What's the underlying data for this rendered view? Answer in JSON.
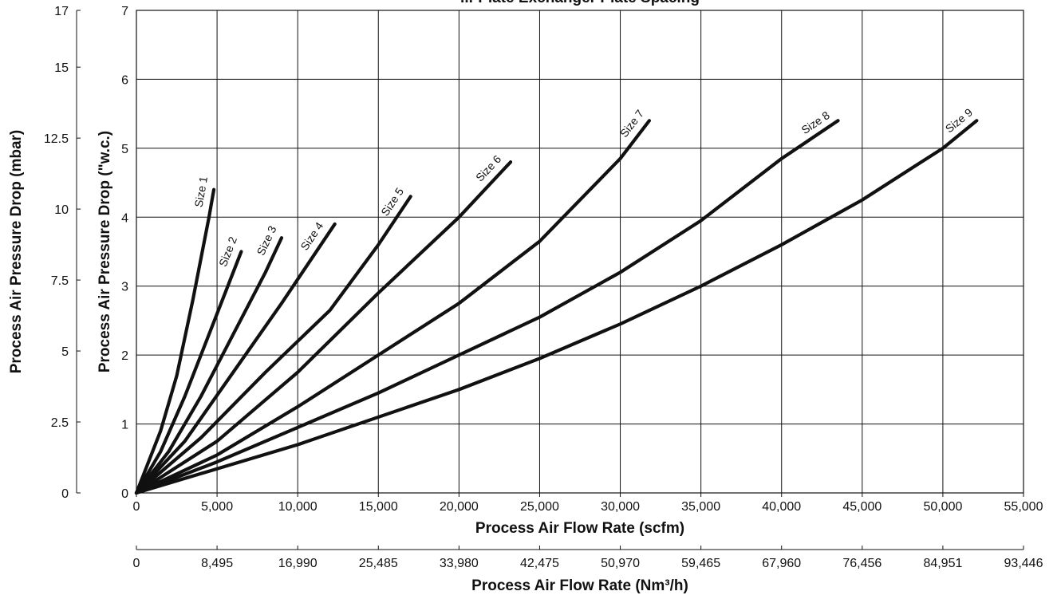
{
  "chart_data": {
    "type": "line",
    "title": "...-Plate Exchanger Plate Spacing",
    "xlabel": "Process Air Flow Rate (scfm)",
    "xlabel_secondary": "Process Air Flow Rate (Nm³/h)",
    "ylabel": "Process Air Pressure Drop (\"w.c.)",
    "ylabel_secondary": "Process Air Pressure Drop (mbar)",
    "xlim": [
      0,
      55000
    ],
    "ylim": [
      0,
      7
    ],
    "ylim_secondary": [
      0,
      17
    ],
    "grid": true,
    "x_ticks": [
      "0",
      "5,000",
      "10,000",
      "15,000",
      "20,000",
      "25,000",
      "30,000",
      "35,000",
      "40,000",
      "45,000",
      "50,000",
      "55,000"
    ],
    "x_secondary_ticks": [
      "0",
      "8,495",
      "16,990",
      "25,485",
      "33,980",
      "42,475",
      "50,970",
      "59,465",
      "67,960",
      "76,456",
      "84,951",
      "93,446"
    ],
    "y_ticks": [
      "0",
      "1",
      "2",
      "3",
      "4",
      "5",
      "6",
      "7"
    ],
    "y_secondary_ticks": [
      {
        "label": "0",
        "value": 0
      },
      {
        "label": "2.5",
        "value": 2.5
      },
      {
        "label": "5",
        "value": 5
      },
      {
        "label": "7.5",
        "value": 7.5
      },
      {
        "label": "10",
        "value": 10
      },
      {
        "label": "12.5",
        "value": 12.5
      },
      {
        "label": "15",
        "value": 15
      },
      {
        "label": "17",
        "value": 17
      }
    ],
    "series": [
      {
        "name": "Size 1",
        "x": [
          0,
          1500,
          2500,
          3500,
          4500,
          4800
        ],
        "y": [
          0,
          0.9,
          1.7,
          2.8,
          4.0,
          4.4
        ]
      },
      {
        "name": "Size 2",
        "x": [
          0,
          1500,
          3000,
          4500,
          6000,
          6500
        ],
        "y": [
          0,
          0.6,
          1.4,
          2.3,
          3.2,
          3.5
        ]
      },
      {
        "name": "Size 3",
        "x": [
          0,
          2000,
          4000,
          6000,
          8000,
          9000
        ],
        "y": [
          0,
          0.6,
          1.4,
          2.3,
          3.2,
          3.7
        ]
      },
      {
        "name": "Size 4",
        "x": [
          0,
          3000,
          6000,
          9000,
          12300
        ],
        "y": [
          0,
          0.75,
          1.75,
          2.75,
          3.9
        ]
      },
      {
        "name": "Size 5",
        "x": [
          0,
          4000,
          8000,
          12000,
          15000,
          17000
        ],
        "y": [
          0,
          0.8,
          1.75,
          2.65,
          3.6,
          4.3
        ]
      },
      {
        "name": "Size 6",
        "x": [
          0,
          5000,
          10000,
          15000,
          20000,
          23200
        ],
        "y": [
          0,
          0.75,
          1.75,
          2.9,
          4.0,
          4.8
        ]
      },
      {
        "name": "Size 7",
        "x": [
          0,
          5000,
          10000,
          15000,
          20000,
          25000,
          30000,
          31800
        ],
        "y": [
          0,
          0.55,
          1.25,
          2.0,
          2.75,
          3.65,
          4.85,
          5.4
        ]
      },
      {
        "name": "Size 8",
        "x": [
          0,
          5000,
          10000,
          15000,
          20000,
          25000,
          30000,
          35000,
          40000,
          43500
        ],
        "y": [
          0,
          0.45,
          0.95,
          1.45,
          2.0,
          2.55,
          3.2,
          3.95,
          4.85,
          5.4
        ]
      },
      {
        "name": "Size 9",
        "x": [
          0,
          5000,
          10000,
          15000,
          20000,
          25000,
          30000,
          35000,
          40000,
          45000,
          50000,
          52100
        ],
        "y": [
          0,
          0.35,
          0.7,
          1.1,
          1.5,
          1.95,
          2.45,
          3.0,
          3.6,
          4.25,
          5.0,
          5.4
        ]
      }
    ]
  }
}
